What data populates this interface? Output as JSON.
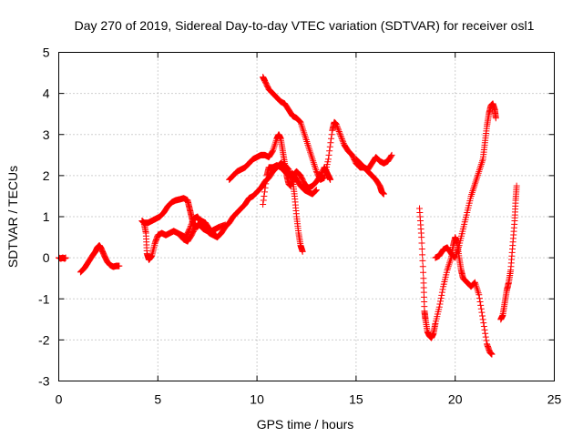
{
  "chart_data": {
    "type": "scatter",
    "title": "Day 270 of 2019, Sidereal Day-to-day VTEC variation (SDTVAR) for receiver osl1",
    "xlabel": "GPS time / hours",
    "ylabel": "SDTVAR / TECUs",
    "xlim": [
      0,
      25
    ],
    "ylim": [
      -3,
      5
    ],
    "xticks": [
      0,
      5,
      10,
      15,
      20,
      25
    ],
    "yticks": [
      -3,
      -2,
      -1,
      0,
      1,
      2,
      3,
      4,
      5
    ],
    "grid": true,
    "marker": "+",
    "color": "#ff0000",
    "series": [
      {
        "name": "s1",
        "points": [
          [
            0.0,
            0.0
          ],
          [
            0.1,
            -0.02
          ],
          [
            0.2,
            0.0
          ],
          [
            0.3,
            -0.02
          ],
          [
            0.35,
            0.0
          ]
        ]
      },
      {
        "name": "s2",
        "points": [
          [
            1.1,
            -0.35
          ],
          [
            1.3,
            -0.25
          ],
          [
            1.5,
            -0.1
          ],
          [
            1.7,
            0.05
          ],
          [
            1.85,
            0.15
          ],
          [
            1.95,
            0.25
          ],
          [
            2.05,
            0.3
          ],
          [
            2.15,
            0.22
          ],
          [
            2.3,
            0.05
          ],
          [
            2.45,
            -0.1
          ],
          [
            2.6,
            -0.18
          ],
          [
            2.75,
            -0.22
          ],
          [
            2.9,
            -0.2
          ],
          [
            3.05,
            -0.2
          ]
        ]
      },
      {
        "name": "s3",
        "points": [
          [
            4.2,
            0.9
          ],
          [
            4.3,
            0.85
          ],
          [
            4.4,
            0.6
          ],
          [
            4.45,
            0.1
          ],
          [
            4.55,
            -0.05
          ],
          [
            4.7,
            0.05
          ],
          [
            4.85,
            0.35
          ],
          [
            5.0,
            0.55
          ],
          [
            5.2,
            0.6
          ],
          [
            5.4,
            0.55
          ],
          [
            5.6,
            0.6
          ],
          [
            5.8,
            0.65
          ],
          [
            6.0,
            0.6
          ],
          [
            6.2,
            0.55
          ],
          [
            6.4,
            0.5
          ],
          [
            6.6,
            0.7
          ],
          [
            6.8,
            0.95
          ],
          [
            7.0,
            1.0
          ],
          [
            7.2,
            0.85
          ],
          [
            7.4,
            0.7
          ],
          [
            7.6,
            0.6
          ],
          [
            7.8,
            0.55
          ],
          [
            8.0,
            0.5
          ],
          [
            8.2,
            0.6
          ],
          [
            8.4,
            0.75
          ],
          [
            8.6,
            0.85
          ],
          [
            8.8,
            1.0
          ],
          [
            9.0,
            1.1
          ],
          [
            9.2,
            1.2
          ],
          [
            9.4,
            1.3
          ],
          [
            9.6,
            1.45
          ],
          [
            9.8,
            1.5
          ],
          [
            10.0,
            1.6
          ],
          [
            10.2,
            1.7
          ],
          [
            10.4,
            1.85
          ],
          [
            10.6,
            1.95
          ],
          [
            10.8,
            2.1
          ],
          [
            11.0,
            2.2
          ],
          [
            11.2,
            2.3
          ],
          [
            11.4,
            2.25
          ],
          [
            11.6,
            2.15
          ],
          [
            11.8,
            1.9
          ],
          [
            11.9,
            1.5
          ],
          [
            12.0,
            1.0
          ],
          [
            12.1,
            0.6
          ],
          [
            12.2,
            0.3
          ],
          [
            12.3,
            0.15
          ]
        ]
      },
      {
        "name": "s4",
        "points": [
          [
            4.3,
            0.85
          ],
          [
            4.5,
            0.85
          ],
          [
            4.7,
            0.9
          ],
          [
            4.9,
            0.95
          ],
          [
            5.1,
            1.0
          ],
          [
            5.3,
            1.1
          ],
          [
            5.5,
            1.25
          ],
          [
            5.7,
            1.35
          ],
          [
            5.9,
            1.4
          ],
          [
            6.1,
            1.42
          ],
          [
            6.3,
            1.45
          ],
          [
            6.5,
            1.4
          ],
          [
            6.6,
            1.2
          ],
          [
            6.7,
            1.0
          ],
          [
            6.8,
            0.8
          ],
          [
            7.0,
            0.75
          ],
          [
            7.2,
            0.9
          ],
          [
            7.4,
            0.85
          ],
          [
            7.6,
            0.7
          ],
          [
            7.8,
            0.6
          ]
        ]
      },
      {
        "name": "s5",
        "points": [
          [
            6.0,
            0.6
          ],
          [
            6.3,
            0.45
          ],
          [
            6.5,
            0.4
          ],
          [
            6.7,
            0.55
          ],
          [
            6.9,
            0.75
          ],
          [
            7.1,
            0.8
          ],
          [
            7.3,
            0.7
          ],
          [
            7.5,
            0.65
          ],
          [
            7.7,
            0.65
          ],
          [
            7.9,
            0.7
          ],
          [
            8.1,
            0.75
          ],
          [
            8.4,
            0.8
          ]
        ]
      },
      {
        "name": "s6",
        "points": [
          [
            8.6,
            1.9
          ],
          [
            8.8,
            2.0
          ],
          [
            9.0,
            2.1
          ],
          [
            9.2,
            2.15
          ],
          [
            9.4,
            2.2
          ],
          [
            9.6,
            2.3
          ],
          [
            9.8,
            2.4
          ],
          [
            10.0,
            2.45
          ],
          [
            10.2,
            2.5
          ],
          [
            10.4,
            2.5
          ],
          [
            10.6,
            2.45
          ],
          [
            10.8,
            2.6
          ],
          [
            11.0,
            2.9
          ],
          [
            11.1,
            3.0
          ],
          [
            11.2,
            2.9
          ],
          [
            11.3,
            2.6
          ],
          [
            11.4,
            2.3
          ],
          [
            11.5,
            2.0
          ],
          [
            11.6,
            1.8
          ],
          [
            11.7,
            1.75
          ],
          [
            11.8,
            1.9
          ],
          [
            11.9,
            2.05
          ],
          [
            12.0,
            2.1
          ],
          [
            12.2,
            2.0
          ],
          [
            12.4,
            1.8
          ],
          [
            12.6,
            1.7
          ],
          [
            12.8,
            1.75
          ],
          [
            13.0,
            1.85
          ],
          [
            13.2,
            2.0
          ],
          [
            13.4,
            2.2
          ],
          [
            13.5,
            2.1
          ],
          [
            13.6,
            2.0
          ],
          [
            13.7,
            1.9
          ]
        ]
      },
      {
        "name": "s7",
        "points": [
          [
            10.3,
            4.4
          ],
          [
            10.4,
            4.3
          ],
          [
            10.6,
            4.1
          ],
          [
            10.8,
            4.0
          ],
          [
            11.0,
            3.9
          ],
          [
            11.2,
            3.8
          ],
          [
            11.4,
            3.75
          ],
          [
            11.6,
            3.6
          ],
          [
            11.8,
            3.45
          ],
          [
            12.0,
            3.4
          ],
          [
            12.2,
            3.3
          ],
          [
            12.4,
            3.0
          ],
          [
            12.6,
            2.7
          ],
          [
            12.8,
            2.4
          ],
          [
            13.0,
            2.1
          ],
          [
            13.2,
            1.9
          ],
          [
            13.4,
            1.95
          ],
          [
            13.6,
            2.4
          ],
          [
            13.8,
            3.1
          ],
          [
            13.9,
            3.3
          ],
          [
            14.0,
            3.25
          ],
          [
            14.2,
            3.0
          ],
          [
            14.4,
            2.75
          ],
          [
            14.6,
            2.6
          ],
          [
            14.8,
            2.5
          ],
          [
            15.0,
            2.3
          ],
          [
            15.2,
            2.2
          ],
          [
            15.4,
            2.2
          ],
          [
            15.6,
            2.15
          ],
          [
            15.8,
            2.3
          ],
          [
            16.0,
            2.45
          ],
          [
            16.2,
            2.35
          ],
          [
            16.4,
            2.3
          ],
          [
            16.6,
            2.35
          ],
          [
            16.8,
            2.5
          ]
        ]
      },
      {
        "name": "s8",
        "points": [
          [
            10.3,
            1.3
          ],
          [
            10.5,
            2.0
          ],
          [
            10.6,
            2.2
          ],
          [
            10.8,
            2.2
          ],
          [
            11.0,
            2.25
          ],
          [
            11.2,
            2.2
          ],
          [
            11.4,
            2.1
          ],
          [
            11.6,
            2.0
          ],
          [
            11.8,
            2.05
          ],
          [
            12.0,
            1.9
          ],
          [
            12.2,
            1.75
          ],
          [
            12.4,
            1.65
          ],
          [
            12.6,
            1.6
          ],
          [
            12.8,
            1.55
          ],
          [
            13.0,
            1.65
          ]
        ]
      },
      {
        "name": "s9",
        "points": [
          [
            15.0,
            2.4
          ],
          [
            15.2,
            2.3
          ],
          [
            15.4,
            2.2
          ],
          [
            15.6,
            2.1
          ],
          [
            15.8,
            2.0
          ],
          [
            16.0,
            1.9
          ],
          [
            16.2,
            1.75
          ],
          [
            16.3,
            1.6
          ],
          [
            16.4,
            1.55
          ]
        ]
      },
      {
        "name": "s10",
        "points": [
          [
            18.2,
            1.2
          ],
          [
            18.3,
            0.5
          ],
          [
            18.4,
            -0.5
          ],
          [
            18.45,
            -1.3
          ],
          [
            18.5,
            -1.5
          ],
          [
            18.6,
            -1.8
          ],
          [
            18.7,
            -1.9
          ],
          [
            18.8,
            -1.95
          ],
          [
            18.9,
            -1.85
          ],
          [
            19.0,
            -1.6
          ],
          [
            19.2,
            -1.2
          ],
          [
            19.4,
            -0.7
          ],
          [
            19.6,
            -0.3
          ],
          [
            19.8,
            0.0
          ],
          [
            19.9,
            0.3
          ],
          [
            20.0,
            0.5
          ],
          [
            20.1,
            0.35
          ],
          [
            20.2,
            0.0
          ],
          [
            20.3,
            -0.3
          ],
          [
            20.4,
            -0.5
          ],
          [
            20.6,
            -0.6
          ],
          [
            20.8,
            -0.7
          ],
          [
            21.0,
            -0.6
          ],
          [
            21.2,
            -0.9
          ],
          [
            21.4,
            -1.5
          ],
          [
            21.6,
            -2.1
          ],
          [
            21.75,
            -2.3
          ],
          [
            21.85,
            -2.35
          ]
        ]
      },
      {
        "name": "s11",
        "points": [
          [
            19.0,
            0.0
          ],
          [
            19.2,
            0.05
          ],
          [
            19.4,
            0.2
          ],
          [
            19.6,
            0.25
          ],
          [
            19.8,
            0.1
          ],
          [
            20.0,
            0.0
          ],
          [
            20.2,
            0.3
          ],
          [
            20.4,
            0.7
          ],
          [
            20.6,
            1.1
          ],
          [
            20.8,
            1.5
          ],
          [
            21.0,
            1.8
          ],
          [
            21.2,
            2.1
          ],
          [
            21.4,
            2.4
          ],
          [
            21.5,
            2.8
          ],
          [
            21.6,
            3.2
          ],
          [
            21.7,
            3.5
          ],
          [
            21.8,
            3.7
          ],
          [
            21.9,
            3.75
          ],
          [
            22.0,
            3.6
          ],
          [
            22.05,
            3.4
          ]
        ]
      },
      {
        "name": "s12",
        "points": [
          [
            22.3,
            -1.5
          ],
          [
            22.4,
            -1.4
          ],
          [
            22.5,
            -1.1
          ],
          [
            22.6,
            -0.8
          ],
          [
            22.7,
            -0.6
          ],
          [
            22.8,
            -0.3
          ],
          [
            22.9,
            0.3
          ],
          [
            23.0,
            0.9
          ],
          [
            23.05,
            1.4
          ],
          [
            23.1,
            1.75
          ]
        ]
      }
    ]
  }
}
